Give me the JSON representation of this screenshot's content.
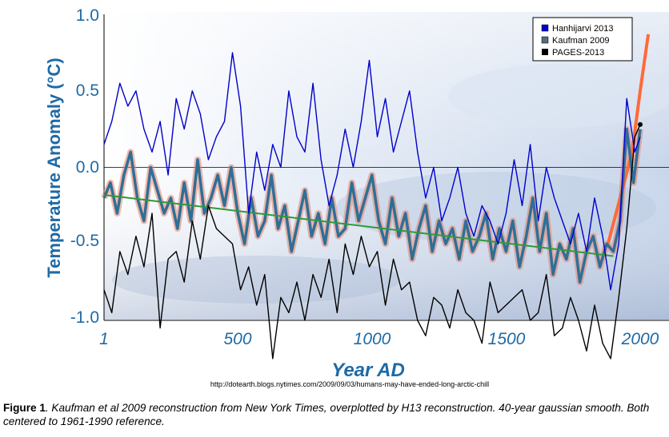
{
  "chart_data": {
    "type": "line",
    "ylabel": "Temperature Anomaly (°C)",
    "xlabel": "Year AD",
    "ylim": [
      -1.0,
      1.0
    ],
    "xlim": [
      1,
      2030
    ],
    "yticks": [
      "1.0",
      "0.5",
      "0.0",
      "-0.5",
      "-1.0"
    ],
    "ytick_values": [
      1.0,
      0.5,
      0.0,
      -0.5,
      -1.0
    ],
    "xticks": [
      "1",
      "500",
      "1000",
      "1500",
      "2000"
    ],
    "xtick_values": [
      1,
      500,
      1000,
      1500,
      2000
    ],
    "source_url": "http://dotearth.blogs.nytimes.com/2009/09/03/humans-may-have-ended-long-arctic-chill",
    "legend": [
      {
        "name": "Hanhijarvi 2013",
        "color": "#0000cc"
      },
      {
        "name": "Kaufman 2009",
        "color": "#556b7f"
      },
      {
        "name": "PAGES-2013",
        "color": "#000000"
      }
    ],
    "series": [
      {
        "name": "Hanhijarvi 2013",
        "color": "#0000cc",
        "x": [
          1,
          30,
          60,
          90,
          120,
          150,
          180,
          210,
          240,
          270,
          300,
          330,
          360,
          390,
          420,
          450,
          480,
          510,
          540,
          570,
          600,
          630,
          660,
          690,
          720,
          750,
          780,
          810,
          840,
          870,
          900,
          930,
          960,
          990,
          1020,
          1050,
          1080,
          1110,
          1140,
          1170,
          1200,
          1230,
          1260,
          1290,
          1320,
          1350,
          1380,
          1410,
          1440,
          1470,
          1500,
          1530,
          1560,
          1590,
          1620,
          1650,
          1680,
          1710,
          1740,
          1770,
          1800,
          1830,
          1860,
          1890,
          1920,
          1950,
          1980,
          2000
        ],
        "values": [
          0.15,
          0.3,
          0.55,
          0.4,
          0.5,
          0.25,
          0.1,
          0.3,
          -0.05,
          0.45,
          0.25,
          0.5,
          0.35,
          0.05,
          0.2,
          0.3,
          0.75,
          0.4,
          -0.3,
          0.1,
          -0.15,
          0.15,
          0.0,
          0.5,
          0.2,
          0.1,
          0.55,
          0.05,
          -0.25,
          -0.05,
          0.25,
          0.0,
          0.3,
          0.7,
          0.2,
          0.45,
          0.1,
          0.3,
          0.5,
          0.1,
          -0.2,
          0.0,
          -0.35,
          -0.2,
          0.0,
          -0.3,
          -0.45,
          -0.25,
          -0.35,
          -0.5,
          -0.3,
          0.05,
          -0.25,
          0.15,
          -0.35,
          0.0,
          -0.2,
          -0.35,
          -0.5,
          -0.3,
          -0.55,
          -0.2,
          -0.45,
          -0.8,
          -0.5,
          0.45,
          0.1,
          0.2
        ]
      },
      {
        "name": "Kaufman 2009",
        "color": "#556b7f",
        "x": [
          1,
          25,
          50,
          75,
          100,
          125,
          150,
          175,
          200,
          225,
          250,
          275,
          300,
          325,
          350,
          375,
          400,
          425,
          450,
          475,
          500,
          525,
          550,
          575,
          600,
          625,
          650,
          675,
          700,
          725,
          750,
          775,
          800,
          825,
          850,
          875,
          900,
          925,
          950,
          975,
          1000,
          1025,
          1050,
          1075,
          1100,
          1125,
          1150,
          1175,
          1200,
          1225,
          1250,
          1275,
          1300,
          1325,
          1350,
          1375,
          1400,
          1425,
          1450,
          1475,
          1500,
          1525,
          1550,
          1575,
          1600,
          1625,
          1650,
          1675,
          1700,
          1725,
          1750,
          1775,
          1800,
          1825,
          1850,
          1875,
          1900,
          1925,
          1950,
          1975,
          2000
        ],
        "values": [
          -0.2,
          -0.1,
          -0.3,
          -0.05,
          0.1,
          -0.2,
          -0.35,
          0.0,
          -0.15,
          -0.3,
          -0.2,
          -0.4,
          -0.1,
          -0.35,
          0.05,
          -0.3,
          -0.2,
          -0.05,
          -0.25,
          0.0,
          -0.3,
          -0.5,
          -0.2,
          -0.45,
          -0.35,
          -0.05,
          -0.4,
          -0.25,
          -0.55,
          -0.35,
          -0.15,
          -0.45,
          -0.3,
          -0.5,
          -0.2,
          -0.45,
          -0.4,
          -0.1,
          -0.35,
          -0.2,
          -0.05,
          -0.35,
          -0.5,
          -0.2,
          -0.45,
          -0.3,
          -0.6,
          -0.4,
          -0.25,
          -0.55,
          -0.35,
          -0.5,
          -0.4,
          -0.6,
          -0.35,
          -0.55,
          -0.45,
          -0.3,
          -0.6,
          -0.4,
          -0.55,
          -0.35,
          -0.65,
          -0.45,
          -0.2,
          -0.55,
          -0.3,
          -0.7,
          -0.5,
          -0.6,
          -0.4,
          -0.75,
          -0.55,
          -0.45,
          -0.65,
          -0.5,
          -0.55,
          -0.35,
          0.25,
          -0.1,
          0.25
        ]
      },
      {
        "name": "PAGES-2013",
        "color": "#000000",
        "x": [
          1,
          30,
          60,
          90,
          120,
          150,
          180,
          210,
          240,
          270,
          300,
          330,
          360,
          390,
          420,
          450,
          480,
          510,
          540,
          570,
          600,
          630,
          660,
          690,
          720,
          750,
          780,
          810,
          840,
          870,
          900,
          930,
          960,
          990,
          1020,
          1050,
          1080,
          1110,
          1140,
          1170,
          1200,
          1230,
          1260,
          1290,
          1320,
          1350,
          1380,
          1410,
          1440,
          1470,
          1500,
          1530,
          1560,
          1590,
          1620,
          1650,
          1680,
          1710,
          1740,
          1770,
          1800,
          1830,
          1860,
          1890,
          1920,
          1950,
          1980,
          2000
        ],
        "values": [
          -0.8,
          -0.95,
          -0.55,
          -0.7,
          -0.45,
          -0.65,
          -0.3,
          -1.05,
          -0.6,
          -0.55,
          -0.75,
          -0.35,
          -0.6,
          -0.25,
          -0.4,
          -0.45,
          -0.5,
          -0.8,
          -0.65,
          -0.9,
          -0.7,
          -1.25,
          -0.85,
          -0.95,
          -0.75,
          -1.0,
          -0.7,
          -0.85,
          -0.6,
          -0.95,
          -0.5,
          -0.7,
          -0.45,
          -0.65,
          -0.55,
          -0.9,
          -0.6,
          -0.8,
          -0.75,
          -1.0,
          -1.1,
          -0.85,
          -0.9,
          -1.05,
          -0.8,
          -0.95,
          -1.0,
          -1.15,
          -0.75,
          -0.95,
          -0.9,
          -0.85,
          -0.8,
          -1.0,
          -0.95,
          -0.7,
          -1.1,
          -1.05,
          -0.85,
          -1.0,
          -1.2,
          -0.9,
          -1.15,
          -1.25,
          -0.85,
          -0.4,
          0.2,
          0.28
        ]
      },
      {
        "name": "Kaufman 2009 linear trend",
        "color": "#2e9a3a",
        "x": [
          1,
          1900
        ],
        "values": [
          -0.18,
          -0.58
        ]
      },
      {
        "name": "Instrumental (orange)",
        "color": "#ff6a3a",
        "x": [
          1880,
          1910,
          1940,
          1970,
          2000,
          2030
        ],
        "values": [
          -0.5,
          -0.3,
          -0.1,
          0.1,
          0.5,
          0.87
        ]
      }
    ]
  },
  "caption": {
    "lead": "Figure 1",
    "body": ". Kaufman et al 2009 reconstruction from New York Times, overplotted by H13 reconstruction.  40-year gaussian smooth. Both centered to 1961-1990 reference."
  }
}
